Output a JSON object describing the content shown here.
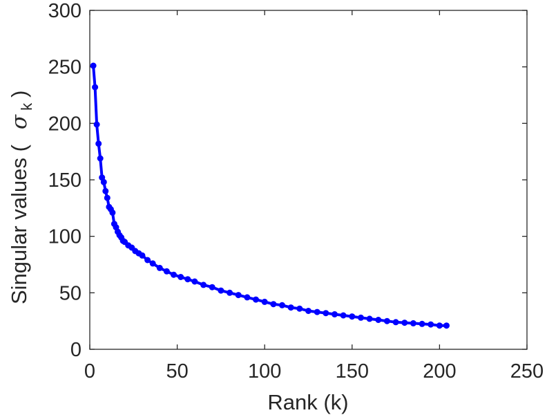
{
  "chart_data": {
    "type": "line",
    "xlabel": "Rank (k)",
    "ylabel_prefix": "Singular values (",
    "ylabel_symbol": "σ",
    "ylabel_subscript": "k",
    "ylabel_suffix": ")",
    "xlim": [
      0,
      250
    ],
    "ylim": [
      0,
      300
    ],
    "xticks": [
      0,
      50,
      100,
      150,
      200,
      250
    ],
    "yticks": [
      0,
      50,
      100,
      150,
      200,
      250,
      300
    ],
    "grid": false,
    "legend": "none",
    "series": [
      {
        "color": "#0000ff",
        "marker": "circle",
        "x": [
          2,
          3,
          4,
          5,
          6,
          7,
          8,
          9,
          10,
          11,
          12,
          13,
          14,
          15,
          16,
          17,
          18,
          19,
          20,
          22,
          24,
          26,
          28,
          30,
          33,
          36,
          40,
          44,
          48,
          52,
          56,
          60,
          65,
          70,
          75,
          80,
          85,
          90,
          95,
          100,
          105,
          110,
          115,
          120,
          125,
          130,
          135,
          140,
          145,
          150,
          155,
          160,
          165,
          170,
          175,
          180,
          185,
          190,
          195,
          200,
          204
        ],
        "y": [
          251,
          232,
          199,
          182,
          169,
          152,
          148,
          140,
          134,
          126,
          124,
          121,
          111,
          108,
          104,
          101,
          99,
          96,
          95,
          92,
          90,
          87,
          85,
          83,
          79,
          76,
          72,
          69,
          66,
          64,
          62,
          60,
          57,
          55,
          52,
          50,
          48,
          46,
          44,
          42,
          40,
          39,
          37,
          36,
          34,
          33,
          32,
          31,
          30,
          29,
          28,
          27,
          26,
          25,
          24,
          23.5,
          23,
          22.5,
          22,
          21,
          21
        ]
      }
    ]
  }
}
